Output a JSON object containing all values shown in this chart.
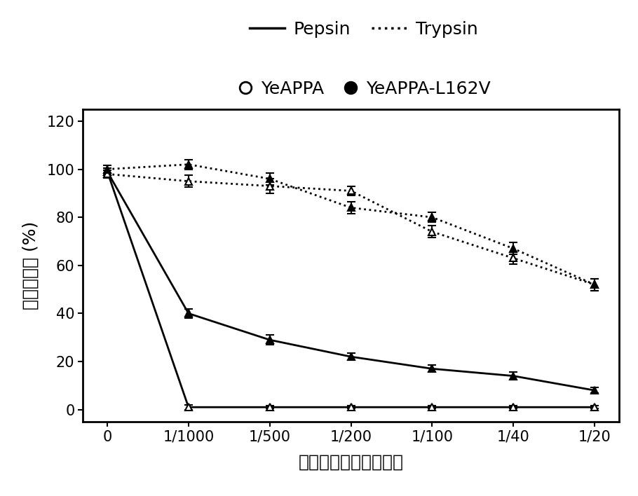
{
  "x_positions": [
    0,
    1,
    2,
    3,
    4,
    5,
    6
  ],
  "x_labels": [
    "0",
    "1/1000",
    "1/500",
    "1/200",
    "1/100",
    "1/40",
    "1/20"
  ],
  "series": {
    "pepsin_yeappa": {
      "y": [
        99,
        1,
        1,
        1,
        1,
        1,
        1
      ],
      "yerr": [
        1.5,
        1.0,
        0.5,
        0.5,
        0.5,
        0.5,
        0.5
      ]
    },
    "pepsin_yeappa_l162v": {
      "y": [
        99,
        40,
        29,
        22,
        17,
        14,
        8
      ],
      "yerr": [
        1.5,
        2.0,
        2.0,
        1.5,
        1.5,
        1.5,
        1.2
      ]
    },
    "trypsin_yeappa": {
      "y": [
        98,
        95,
        93,
        91,
        74,
        63,
        52
      ],
      "yerr": [
        1.5,
        2.5,
        3.0,
        2.0,
        2.5,
        2.5,
        2.5
      ]
    },
    "trypsin_yeappa_l162v": {
      "y": [
        100,
        102,
        96,
        84,
        80,
        67,
        52
      ],
      "yerr": [
        1.5,
        2.0,
        2.5,
        2.5,
        2.0,
        2.5,
        2.5
      ]
    }
  },
  "ylabel": "相對醂活性 (%)",
  "xlabel": "蛋白醂與植酸醂的比値",
  "ylim": [
    -5,
    125
  ],
  "yticks": [
    0,
    20,
    40,
    60,
    80,
    100,
    120
  ],
  "legend_pepsin_label": "Pepsin",
  "legend_trypsin_label": "Trypsin",
  "legend_yeappa_label": "YeAPPA",
  "legend_yeappa_l162v_label": "YeAPPA-L162V",
  "background_color": "#ffffff",
  "font_size_labels": 18,
  "font_size_ticks": 15,
  "font_size_legend": 18,
  "linewidth": 2.0,
  "markersize": 7,
  "capsize": 4,
  "elinewidth": 1.5
}
